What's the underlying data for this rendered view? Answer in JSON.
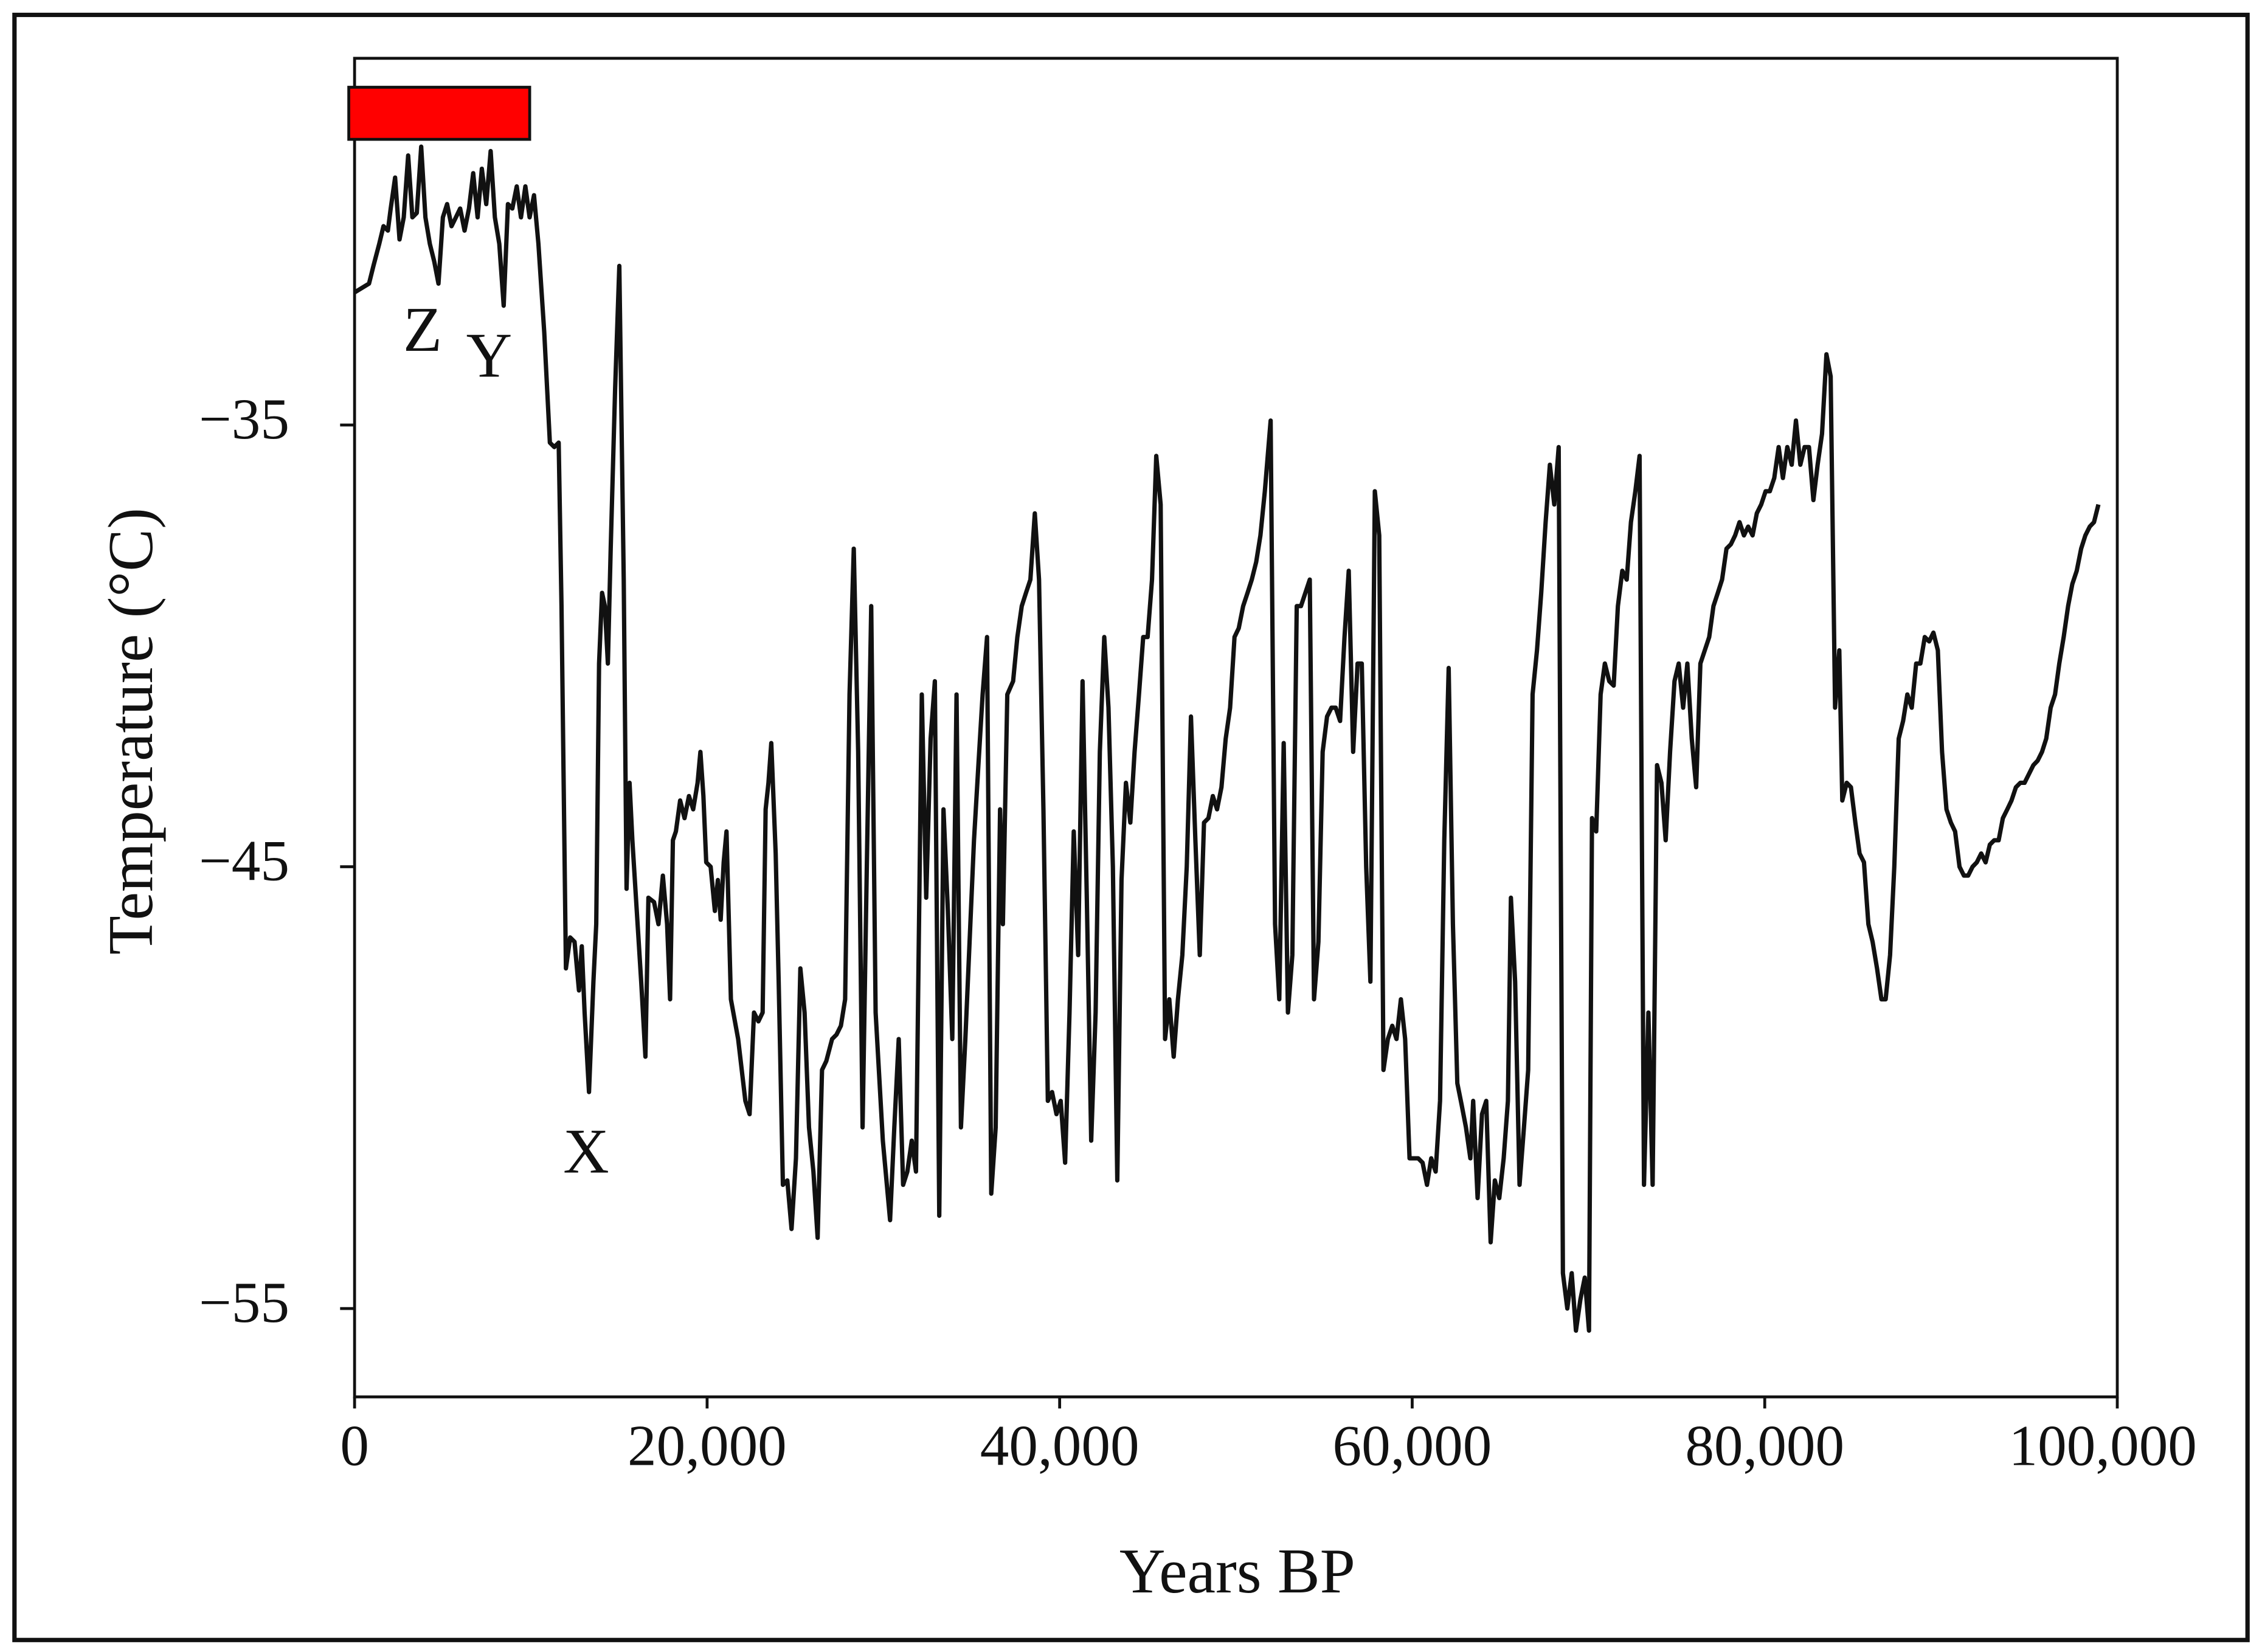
{
  "chart_data": {
    "type": "line",
    "xlabel": "Years BP",
    "ylabel": "Temperature (°C)",
    "annotations": [
      "Z",
      "Y",
      "X"
    ],
    "xlim": [
      0,
      100000
    ],
    "ylim": [
      -57,
      -26.7
    ],
    "xticks": [
      0,
      {
        "value": 20000,
        "label": "20,000"
      },
      {
        "value": 40000,
        "label": "40,000"
      },
      {
        "value": 60000,
        "label": "60,000"
      },
      {
        "value": 80000,
        "label": "80,000"
      },
      {
        "value": 100000,
        "label": "100,000"
      }
    ],
    "yticks": [
      {
        "value": -35,
        "label": "−35"
      },
      {
        "value": -45,
        "label": "−45"
      },
      {
        "value": -55,
        "label": "−55"
      }
    ],
    "x": [
      0,
      410,
      820,
      1070,
      1400,
      1640,
      1890,
      2050,
      2300,
      2550,
      2790,
      3040,
      3280,
      3530,
      3780,
      4020,
      4270,
      4520,
      4760,
      5010,
      5250,
      5500,
      5750,
      5990,
      6240,
      6490,
      6730,
      6980,
      7220,
      7470,
      7720,
      7960,
      8210,
      8460,
      8700,
      8950,
      9200,
      9440,
      9690,
      9930,
      10180,
      10430,
      10760,
      11080,
      11330,
      11580,
      11740,
      11990,
      12230,
      12480,
      12730,
      12890,
      13050,
      13300,
      13550,
      13710,
      13870,
      14040,
      14200,
      14370,
      14530,
      14780,
      15020,
      15270,
      15430,
      15600,
      15760,
      16010,
      16260,
      16500,
      16670,
      16990,
      17240,
      17490,
      17730,
      17900,
      18060,
      18230,
      18470,
      18720,
      18970,
      19210,
      19460,
      19620,
      19790,
      19950,
      20200,
      20440,
      20610,
      20770,
      20940,
      21100,
      21350,
      21760,
      22170,
      22410,
      22660,
      22910,
      23150,
      23320,
      23480,
      23640,
      23890,
      24060,
      24300,
      24550,
      24790,
      25040,
      25290,
      25530,
      25780,
      26030,
      26270,
      26520,
      26760,
      27090,
      27340,
      27590,
      27830,
      28080,
      28320,
      28570,
      28820,
      29060,
      29310,
      29560,
      29970,
      30380,
      30620,
      30870,
      31120,
      31360,
      31610,
      31850,
      32180,
      32430,
      32680,
      32920,
      33170,
      33410,
      33660,
      33910,
      34150,
      34400,
      34650,
      34890,
      35140,
      35390,
      35630,
      35880,
      36120,
      36370,
      36620,
      36780,
      37030,
      37360,
      37600,
      37850,
      38090,
      38340,
      38590,
      38830,
      39080,
      39330,
      39570,
      39820,
      40060,
      40310,
      40560,
      40800,
      41050,
      41300,
      41540,
      41790,
      42040,
      42280,
      42530,
      42770,
      43020,
      43270,
      43510,
      43760,
      44010,
      44250,
      44500,
      44740,
      44990,
      45240,
      45480,
      45730,
      45980,
      46220,
      46470,
      46710,
      46960,
      47210,
      47450,
      47700,
      47950,
      48190,
      48440,
      48690,
      48930,
      49180,
      49420,
      49670,
      49920,
      50160,
      50410,
      50660,
      50900,
      51150,
      51390,
      51640,
      51970,
      52220,
      52460,
      52710,
      52950,
      53200,
      53450,
      53690,
      53940,
      54190,
      54430,
      54680,
      54920,
      55170,
      55420,
      55660,
      55910,
      56160,
      56400,
      56650,
      56900,
      57140,
      57390,
      57630,
      57880,
      58130,
      58370,
      58620,
      58870,
      59110,
      59360,
      59600,
      59850,
      60100,
      60340,
      60590,
      60840,
      61080,
      61330,
      61580,
      61820,
      62070,
      62310,
      62560,
      62810,
      63050,
      63300,
      63460,
      63710,
      63960,
      64200,
      64450,
      64690,
      64940,
      65190,
      65430,
      65600,
      65840,
      66090,
      66340,
      66580,
      66830,
      67080,
      67320,
      67570,
      67810,
      68060,
      68310,
      68550,
      68800,
      69050,
      69290,
      69540,
      69790,
      70030,
      70200,
      70440,
      70690,
      70930,
      71180,
      71430,
      71670,
      71920,
      72170,
      72410,
      72660,
      72900,
      73150,
      73400,
      73640,
      73890,
      74140,
      74380,
      74630,
      74880,
      75120,
      75370,
      75610,
      75860,
      76110,
      76350,
      76600,
      76850,
      77090,
      77340,
      77580,
      77830,
      78080,
      78320,
      78570,
      78820,
      79060,
      79310,
      79550,
      79800,
      80050,
      80290,
      80540,
      80790,
      81030,
      81280,
      81530,
      81770,
      82020,
      82260,
      82510,
      82760,
      83000,
      83250,
      83500,
      83740,
      83990,
      84230,
      84400,
      84650,
      84890,
      85140,
      85380,
      85630,
      85880,
      86120,
      86370,
      86620,
      86860,
      87110,
      87350,
      87600,
      87850,
      88090,
      88340,
      88590,
      88830,
      89080,
      89330,
      89570,
      89820,
      90060,
      90310,
      90560,
      90800,
      91050,
      91300,
      91540,
      91790,
      92030,
      92280,
      92530,
      92770,
      93020,
      93270,
      93510,
      93760,
      94000,
      94250,
      94500,
      94740,
      94990,
      95240,
      95480,
      95730,
      95970,
      96220,
      96470,
      96710,
      96960,
      97210,
      97450,
      97700,
      97950,
      98190,
      98440,
      98680,
      98930
    ],
    "series": [
      {
        "color": "#111111",
        "values": [
          -32.0,
          -31.9,
          -31.8,
          -31.4,
          -30.9,
          -30.5,
          -30.6,
          -30.1,
          -29.4,
          -30.8,
          -30.3,
          -28.9,
          -30.3,
          -30.2,
          -28.7,
          -30.3,
          -30.9,
          -31.3,
          -31.8,
          -30.3,
          -30.0,
          -30.5,
          -30.3,
          -30.1,
          -30.6,
          -30.1,
          -29.3,
          -30.3,
          -29.2,
          -30.0,
          -28.8,
          -30.3,
          -30.9,
          -32.3,
          -30.0,
          -30.1,
          -29.6,
          -30.3,
          -29.6,
          -30.3,
          -29.8,
          -30.9,
          -32.9,
          -35.4,
          -35.5,
          -35.4,
          -39.1,
          -47.3,
          -46.6,
          -46.7,
          -47.8,
          -46.8,
          -48.3,
          -50.1,
          -47.6,
          -46.3,
          -40.4,
          -38.8,
          -39.1,
          -40.4,
          -37.8,
          -34.2,
          -31.4,
          -38.5,
          -45.5,
          -43.1,
          -44.4,
          -46.0,
          -47.6,
          -49.3,
          -45.7,
          -45.8,
          -46.3,
          -45.2,
          -46.3,
          -48.0,
          -44.4,
          -44.2,
          -43.5,
          -43.9,
          -43.4,
          -43.7,
          -43.1,
          -42.4,
          -43.4,
          -44.9,
          -45.0,
          -46.0,
          -45.3,
          -46.2,
          -44.9,
          -44.2,
          -48.0,
          -48.9,
          -50.3,
          -50.6,
          -48.3,
          -48.5,
          -48.3,
          -43.7,
          -43.1,
          -42.2,
          -44.7,
          -47.6,
          -52.2,
          -52.1,
          -53.2,
          -51.6,
          -47.3,
          -48.3,
          -50.9,
          -51.9,
          -53.4,
          -49.6,
          -49.4,
          -48.9,
          -48.8,
          -48.6,
          -48.0,
          -41.1,
          -37.8,
          -42.4,
          -50.9,
          -45.0,
          -39.1,
          -48.3,
          -51.2,
          -53.0,
          -50.9,
          -48.9,
          -52.2,
          -51.9,
          -51.2,
          -51.9,
          -41.1,
          -45.7,
          -42.1,
          -40.8,
          -52.9,
          -43.7,
          -46.0,
          -48.9,
          -41.1,
          -50.9,
          -48.9,
          -46.7,
          -44.4,
          -42.7,
          -41.1,
          -39.8,
          -52.4,
          -50.9,
          -43.7,
          -46.3,
          -41.1,
          -40.8,
          -39.8,
          -39.1,
          -38.8,
          -38.5,
          -37.0,
          -38.5,
          -43.7,
          -50.3,
          -50.1,
          -50.6,
          -50.3,
          -51.7,
          -48.3,
          -44.2,
          -47.0,
          -40.8,
          -45.7,
          -51.2,
          -48.3,
          -42.4,
          -39.8,
          -41.4,
          -45.0,
          -52.1,
          -45.3,
          -43.1,
          -44.0,
          -42.4,
          -41.1,
          -39.8,
          -39.8,
          -38.5,
          -35.7,
          -36.8,
          -48.9,
          -48.0,
          -49.3,
          -48.0,
          -47.0,
          -45.0,
          -41.6,
          -44.4,
          -47.0,
          -44.0,
          -43.9,
          -43.4,
          -43.7,
          -43.2,
          -42.1,
          -41.4,
          -39.8,
          -39.6,
          -39.1,
          -38.8,
          -38.5,
          -38.1,
          -37.5,
          -36.5,
          -34.9,
          -46.3,
          -48.0,
          -42.2,
          -48.3,
          -47.0,
          -39.1,
          -39.1,
          -38.8,
          -38.5,
          -48.0,
          -46.7,
          -42.4,
          -41.6,
          -41.4,
          -41.4,
          -41.7,
          -39.8,
          -38.3,
          -42.4,
          -40.4,
          -40.4,
          -45.0,
          -47.6,
          -36.5,
          -37.5,
          -49.6,
          -48.9,
          -48.6,
          -48.9,
          -48.0,
          -48.9,
          -51.6,
          -51.6,
          -51.6,
          -51.7,
          -52.2,
          -51.6,
          -51.9,
          -50.3,
          -44.4,
          -40.5,
          -46.3,
          -49.9,
          -50.4,
          -50.9,
          -51.6,
          -50.3,
          -52.5,
          -50.6,
          -50.3,
          -53.5,
          -52.1,
          -52.5,
          -51.6,
          -50.3,
          -45.7,
          -47.6,
          -52.2,
          -50.9,
          -49.6,
          -41.1,
          -40.1,
          -38.8,
          -37.2,
          -35.9,
          -36.8,
          -35.5,
          -54.2,
          -55.0,
          -54.2,
          -55.5,
          -54.8,
          -54.3,
          -55.5,
          -43.9,
          -44.2,
          -41.1,
          -40.4,
          -40.8,
          -40.9,
          -39.1,
          -38.3,
          -38.5,
          -37.2,
          -36.5,
          -35.7,
          -52.2,
          -48.3,
          -52.2,
          -42.7,
          -43.1,
          -44.4,
          -42.4,
          -40.8,
          -40.4,
          -41.4,
          -40.4,
          -42.1,
          -43.2,
          -40.4,
          -40.1,
          -39.8,
          -39.1,
          -38.8,
          -38.5,
          -37.8,
          -37.7,
          -37.5,
          -37.2,
          -37.5,
          -37.3,
          -37.5,
          -37.0,
          -36.8,
          -36.5,
          -36.5,
          -36.2,
          -35.5,
          -36.2,
          -35.5,
          -35.9,
          -34.9,
          -35.9,
          -35.5,
          -35.5,
          -36.7,
          -35.9,
          -35.2,
          -33.4,
          -33.9,
          -41.4,
          -40.1,
          -43.5,
          -43.1,
          -43.2,
          -44.0,
          -44.7,
          -44.9,
          -46.3,
          -46.7,
          -47.3,
          -48.0,
          -48.0,
          -47.0,
          -45.0,
          -42.1,
          -41.7,
          -41.1,
          -41.4,
          -40.4,
          -40.4,
          -39.8,
          -39.9,
          -39.7,
          -40.1,
          -42.4,
          -43.7,
          -44.0,
          -44.2,
          -45.0,
          -45.2,
          -45.2,
          -45.0,
          -44.9,
          -44.7,
          -44.9,
          -44.5,
          -44.4,
          -44.4,
          -43.9,
          -43.7,
          -43.5,
          -43.2,
          -43.1,
          -43.1,
          -42.9,
          -42.7,
          -42.6,
          -42.4,
          -42.1,
          -41.4,
          -41.1,
          -40.4,
          -39.8,
          -39.1,
          -38.6,
          -38.3,
          -37.8,
          -37.5,
          -37.3,
          -37.2,
          -36.8
        ]
      }
    ]
  }
}
